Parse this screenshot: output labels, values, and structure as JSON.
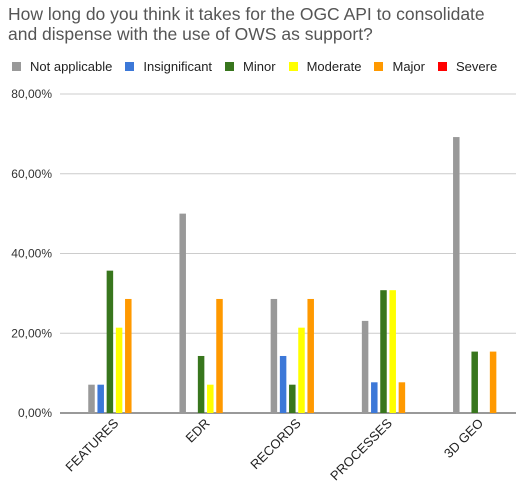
{
  "chart_data": {
    "type": "bar",
    "title_lines": [
      "How long do you think it takes for the OGC API to consolidate",
      "and dispense with the use of OWS as support?"
    ],
    "categories": [
      "FEATURES",
      "EDR",
      "RECORDS",
      "PROCESSES",
      "3D GEO"
    ],
    "series": [
      {
        "name": "Not applicable",
        "color": "#999999",
        "values": [
          7.1,
          50.0,
          28.6,
          23.1,
          69.2
        ]
      },
      {
        "name": "Insignificant",
        "color": "#3c78d8",
        "values": [
          7.1,
          0,
          14.3,
          7.7,
          0
        ]
      },
      {
        "name": "Minor",
        "color": "#38761d",
        "values": [
          35.7,
          14.3,
          7.1,
          30.8,
          15.4
        ]
      },
      {
        "name": "Moderate",
        "color": "#ffff00",
        "values": [
          21.4,
          7.1,
          21.4,
          30.8,
          0
        ]
      },
      {
        "name": "Major",
        "color": "#ff9900",
        "values": [
          28.6,
          28.6,
          28.6,
          7.7,
          15.4
        ]
      },
      {
        "name": "Severe",
        "color": "#ff0000",
        "values": [
          0,
          0,
          0,
          0,
          0
        ]
      }
    ],
    "y_ticks": [
      "0,00%",
      "20,00%",
      "40,00%",
      "60,00%",
      "80,00%"
    ],
    "ylim": [
      0,
      80
    ],
    "xlabel": "",
    "ylabel": "",
    "legend_position": "top",
    "grid": true
  }
}
